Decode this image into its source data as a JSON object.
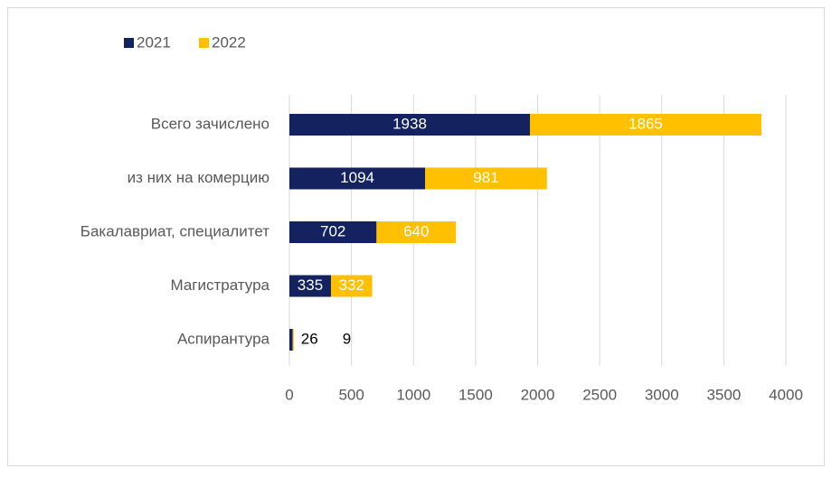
{
  "chart_data": {
    "type": "stacked_barh",
    "categories": [
      "Всего зачислено",
      "из них на комерцию",
      "Бакалавриат, специалитет",
      "Магистратура",
      "Аспирантура"
    ],
    "series": [
      {
        "name": "2021",
        "color": "#142360",
        "values": [
          1938,
          1094,
          702,
          335,
          26
        ]
      },
      {
        "name": "2022",
        "color": "#ffc000",
        "values": [
          1865,
          981,
          640,
          332,
          9
        ]
      }
    ],
    "xlim": [
      0,
      4000
    ],
    "xticks": [
      0,
      500,
      1000,
      1500,
      2000,
      2500,
      3000,
      3500,
      4000
    ],
    "grid": true,
    "legend": "top-left"
  }
}
